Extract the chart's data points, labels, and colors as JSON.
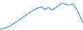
{
  "x": [
    0,
    1,
    2,
    3,
    4,
    5,
    6,
    7,
    8,
    9,
    10,
    11,
    12,
    13,
    14,
    15,
    16,
    17,
    18,
    19,
    20,
    21,
    22,
    23,
    24
  ],
  "y": [
    0.3,
    0.5,
    0.9,
    1.5,
    2.2,
    3.0,
    3.8,
    4.7,
    5.5,
    6.3,
    7.0,
    7.6,
    8.0,
    7.0,
    7.8,
    6.8,
    7.5,
    8.5,
    9.2,
    8.8,
    8.5,
    9.0,
    7.5,
    5.0,
    2.5
  ],
  "line_color": "#1a8fc1",
  "background_color": "#ffffff",
  "ylim": [
    0,
    10.5
  ],
  "xlim": [
    0,
    24
  ]
}
